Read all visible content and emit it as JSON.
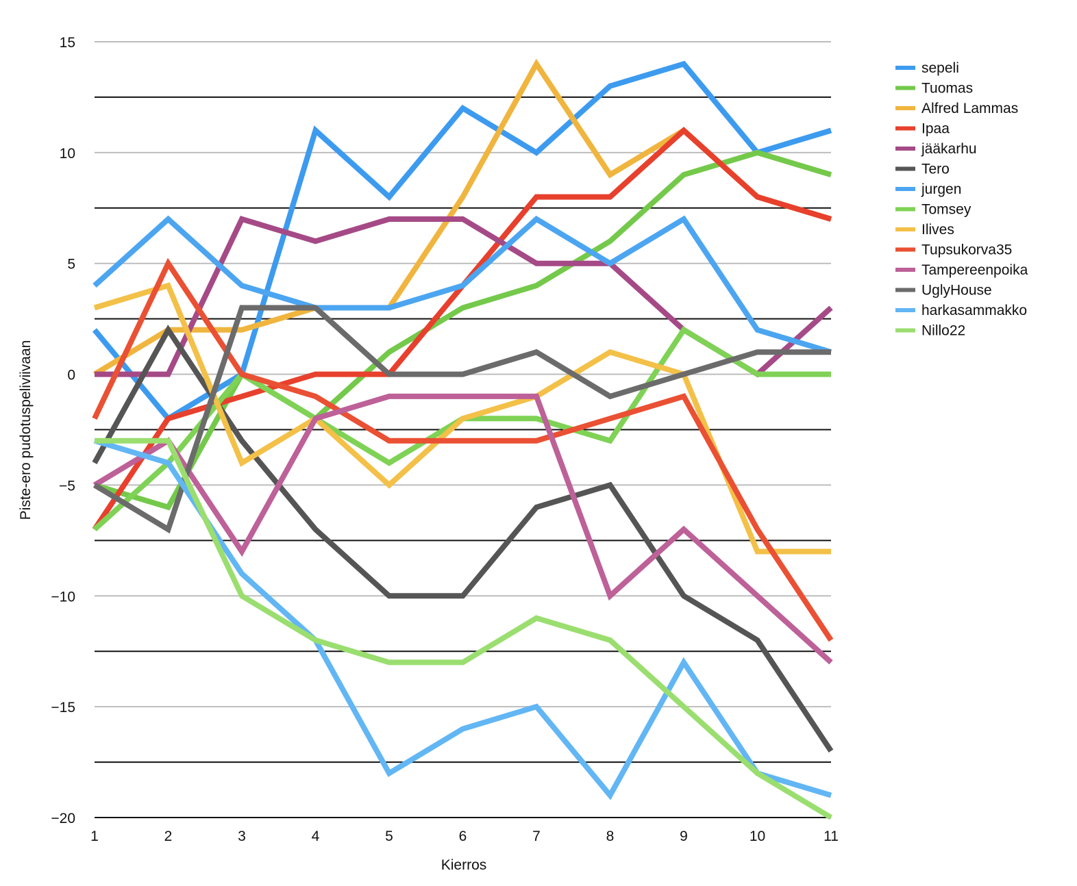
{
  "chart_data": {
    "type": "line",
    "xlabel": "Kierros",
    "ylabel": "Piste-ero pudotuspeliviivaan",
    "x": [
      1,
      2,
      3,
      4,
      5,
      6,
      7,
      8,
      9,
      10,
      11
    ],
    "xlim": [
      1,
      11
    ],
    "ylim": [
      -20,
      15
    ],
    "yticks": [
      15,
      10,
      5,
      0,
      -5,
      -10,
      -15,
      -20
    ],
    "ytick_labels": [
      "15",
      "10",
      "5",
      "0",
      "−5",
      "−10",
      "−15",
      "−20"
    ],
    "grid": {
      "major_lines": [
        15,
        10,
        5,
        0,
        -5,
        -10,
        -15,
        -20
      ],
      "minor_lines": [
        12.5,
        7.5,
        2.5,
        -2.5,
        -7.5,
        -12.5,
        -17.5
      ]
    },
    "legend_position": "right",
    "series": [
      {
        "name": "sepeli",
        "color": "#3d9bef",
        "values": [
          2,
          -2,
          0,
          11,
          8,
          12,
          10,
          13,
          14,
          10,
          11
        ]
      },
      {
        "name": "Tuomas",
        "color": "#74c94b",
        "values": [
          -5,
          -6,
          0,
          -2,
          1,
          3,
          4,
          6,
          9,
          10,
          9
        ]
      },
      {
        "name": "Alfred Lammas",
        "color": "#f0b53e",
        "values": [
          0,
          2,
          2,
          3,
          3,
          8,
          14,
          9,
          11,
          8,
          7
        ]
      },
      {
        "name": "Ipaa",
        "color": "#e7402d",
        "values": [
          -7,
          -2,
          -1,
          0,
          0,
          4,
          8,
          8,
          11,
          8,
          7
        ]
      },
      {
        "name": "jääkarhu",
        "color": "#a54a86",
        "values": [
          0,
          0,
          7,
          6,
          7,
          7,
          5,
          5,
          2,
          0,
          3
        ]
      },
      {
        "name": "Tero",
        "color": "#555555",
        "values": [
          -4,
          2,
          -3,
          -7,
          -10,
          -10,
          -6,
          -5,
          -10,
          -12,
          -17
        ]
      },
      {
        "name": "jurgen",
        "color": "#4ca5f0",
        "values": [
          4,
          7,
          4,
          3,
          3,
          4,
          7,
          5,
          7,
          2,
          1
        ]
      },
      {
        "name": "Tomsey",
        "color": "#7fd255",
        "values": [
          -7,
          -4,
          0,
          -2,
          -4,
          -2,
          -2,
          -3,
          2,
          0,
          0
        ]
      },
      {
        "name": "Ilives",
        "color": "#f3c048",
        "values": [
          3,
          4,
          -4,
          -2,
          -5,
          -2,
          -1,
          1,
          0,
          -8,
          -8
        ]
      },
      {
        "name": "Tupsukorva35",
        "color": "#ea5033",
        "values": [
          -2,
          5,
          0,
          -1,
          -3,
          -3,
          -3,
          -2,
          -1,
          -7,
          -12
        ]
      },
      {
        "name": "Tampereenpoika",
        "color": "#bd6198",
        "values": [
          -5,
          -3,
          -8,
          -2,
          -1,
          -1,
          -1,
          -10,
          -7,
          -10,
          -13
        ]
      },
      {
        "name": "UglyHouse",
        "color": "#6b6b6b",
        "values": [
          -5,
          -7,
          3,
          3,
          0,
          0,
          1,
          -1,
          0,
          1,
          1
        ]
      },
      {
        "name": "harkasammakko",
        "color": "#62b6f4",
        "values": [
          -3,
          -4,
          -9,
          -12,
          -18,
          -16,
          -15,
          -19,
          -13,
          -18,
          -19
        ]
      },
      {
        "name": "Nillo22",
        "color": "#9bde70",
        "values": [
          -3,
          -3,
          -10,
          -12,
          -13,
          -13,
          -11,
          -12,
          -15,
          -18,
          -20
        ]
      }
    ]
  }
}
